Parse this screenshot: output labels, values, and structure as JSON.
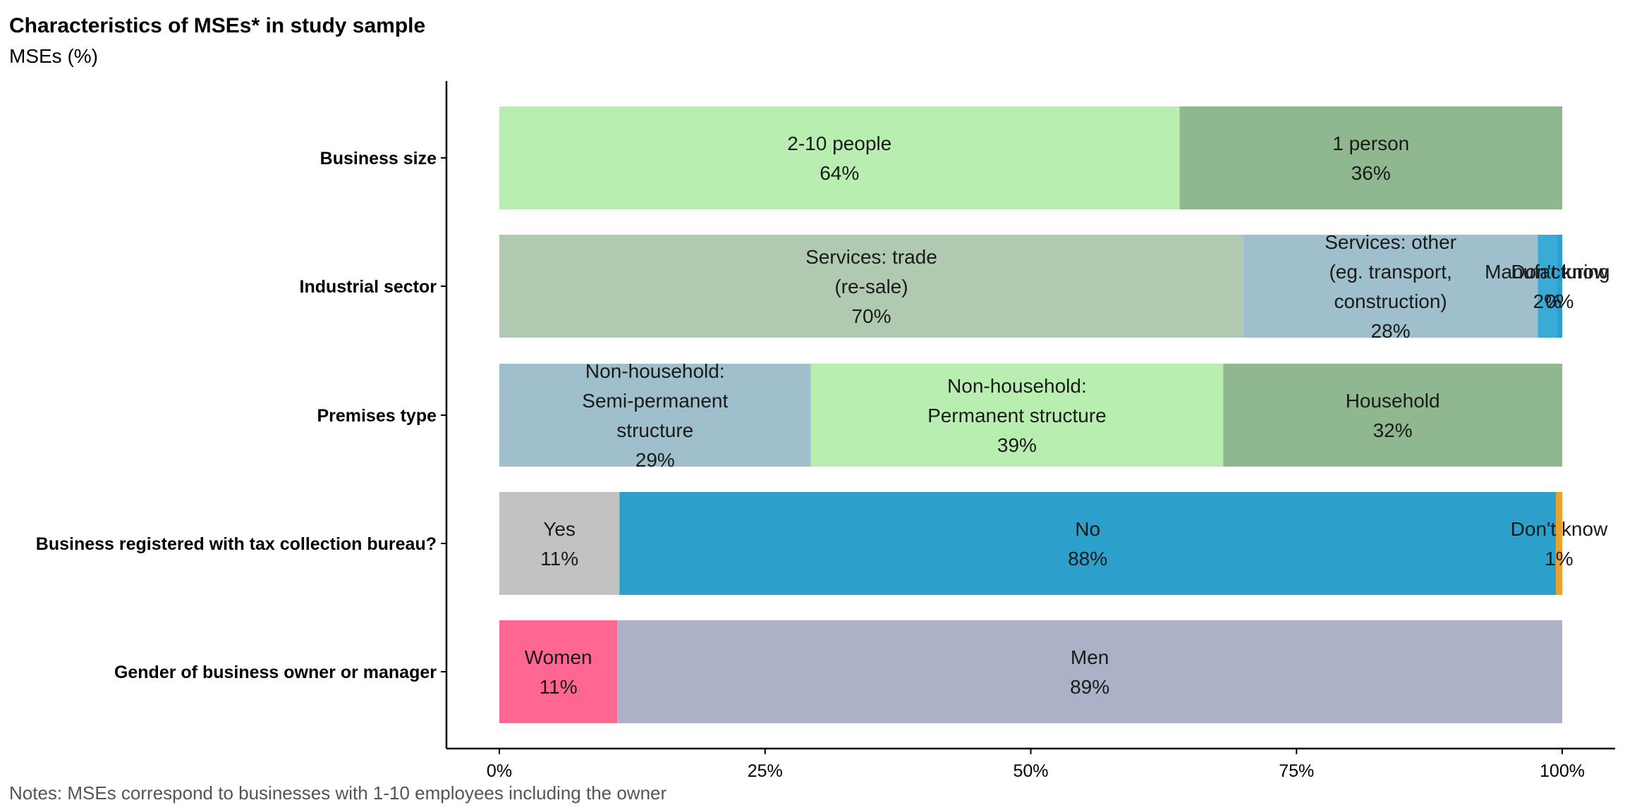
{
  "title": "Characteristics of MSEs* in study sample",
  "subtitle": "MSEs (%)",
  "notes": "Notes: MSEs correspond to businesses with 1-10 employees including the owner",
  "chart_data": {
    "type": "bar",
    "orientation": "horizontal",
    "stacked": true,
    "xlim": [
      0,
      100
    ],
    "x_ticks": [
      "0%",
      "25%",
      "50%",
      "75%",
      "100%"
    ],
    "grid": false,
    "legend": "none",
    "categories": [
      "Business size",
      "Industrial sector",
      "Premises type",
      "Business registered with tax collection bureau?",
      "Gender of business owner or manager"
    ],
    "bars": [
      {
        "category": "Business size",
        "segments": [
          {
            "label": [
              "2-10 people",
              "64%"
            ],
            "value": 64,
            "color": "#b8efb0"
          },
          {
            "label": [
              "1 person",
              "36%"
            ],
            "value": 36,
            "color": "#8fb88f"
          }
        ]
      },
      {
        "category": "Industrial sector",
        "segments": [
          {
            "label": [
              "Services: trade",
              "(re-sale)",
              "70%"
            ],
            "value": 70,
            "color": "#b0cab2"
          },
          {
            "label": [
              "Services: other",
              "(eg. transport,",
              "construction)",
              "28%"
            ],
            "value": 27.7,
            "color": "#9ebfcb"
          },
          {
            "label": [
              "Manufacturing",
              "2%"
            ],
            "value": 1.8,
            "color": "#3aabd6"
          },
          {
            "label": [
              "Don't know",
              "0%"
            ],
            "value": 0.5,
            "color": "#2b9fcf"
          }
        ]
      },
      {
        "category": "Premises type",
        "segments": [
          {
            "label": [
              "Non-household:",
              "Semi-permanent",
              "structure",
              "29%"
            ],
            "value": 29.3,
            "color": "#9ebfcb"
          },
          {
            "label": [
              "Non-household:",
              "Permanent structure",
              "39%"
            ],
            "value": 38.8,
            "color": "#b8efb0"
          },
          {
            "label": [
              "Household",
              "32%"
            ],
            "value": 31.9,
            "color": "#8fb88f"
          }
        ]
      },
      {
        "category": "Business registered with tax collection bureau?",
        "segments": [
          {
            "label": [
              "Yes",
              "11%"
            ],
            "value": 11.3,
            "color": "#c2c2c2"
          },
          {
            "label": [
              "No",
              "88%"
            ],
            "value": 88.1,
            "color": "#2c9fcb"
          },
          {
            "label": [
              "Don't know",
              "1%"
            ],
            "value": 0.6,
            "color": "#f0a02a"
          }
        ]
      },
      {
        "category": "Gender of business owner or manager",
        "segments": [
          {
            "label": [
              "Women",
              "11%"
            ],
            "value": 11.1,
            "color": "#ff6690"
          },
          {
            "label": [
              "Men",
              "89%"
            ],
            "value": 88.9,
            "color": "#abb1c7"
          }
        ]
      }
    ]
  }
}
